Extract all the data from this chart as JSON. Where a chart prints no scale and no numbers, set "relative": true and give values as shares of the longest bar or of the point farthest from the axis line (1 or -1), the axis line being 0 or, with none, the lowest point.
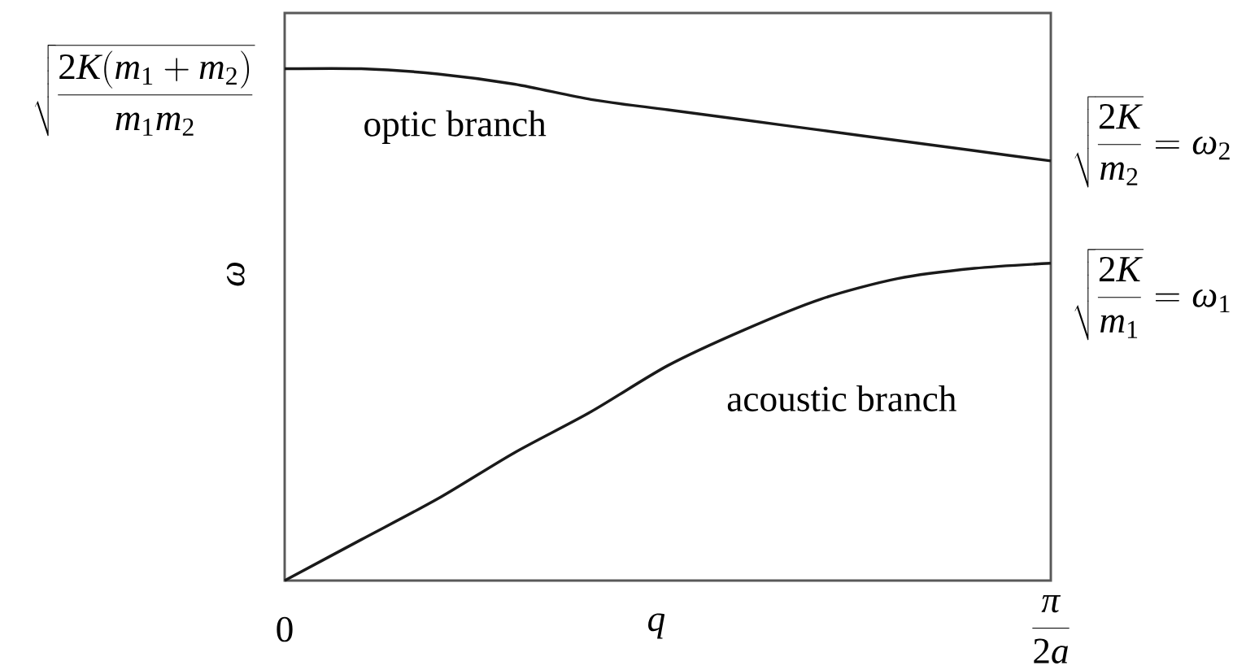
{
  "chart_data": {
    "type": "line",
    "relative": true,
    "xlabel": "q",
    "ylabel": "\\omega",
    "categories": [
      "0",
      null,
      null,
      null,
      null,
      null,
      null,
      null,
      null,
      null,
      "\\frac{\\pi}{2a}"
    ],
    "marker": "none",
    "line_style": "solid",
    "series": [
      {
        "name": "optic branch",
        "color": "#1a1a1a",
        "values": [
          1,
          1,
          0.99,
          0.97,
          0.94,
          0.92,
          0.9,
          0.88,
          0.86,
          0.84,
          0.82
        ]
      },
      {
        "name": "acoustic branch",
        "color": "#1a1a1a",
        "values": [
          0,
          0.08,
          0.16,
          0.25,
          0.33,
          0.42,
          0.49,
          0.55,
          0.59,
          0.61,
          0.62
        ]
      }
    ],
    "annotations": [
      {
        "text": "\\sqrt{\\frac{2K(m_1+m_2)}{m_1m_2}}",
        "x": "0",
        "y": 1
      },
      {
        "text": "\\sqrt{\\frac{2K}{m_2}}=\\omega_2",
        "x": "\\frac{\\pi}{2a}",
        "y": 0.82
      },
      {
        "text": "\\sqrt{\\frac{2K}{m_1}}=\\omega_1",
        "x": "\\frac{\\pi}{2a}",
        "y": 0.62
      }
    ]
  }
}
